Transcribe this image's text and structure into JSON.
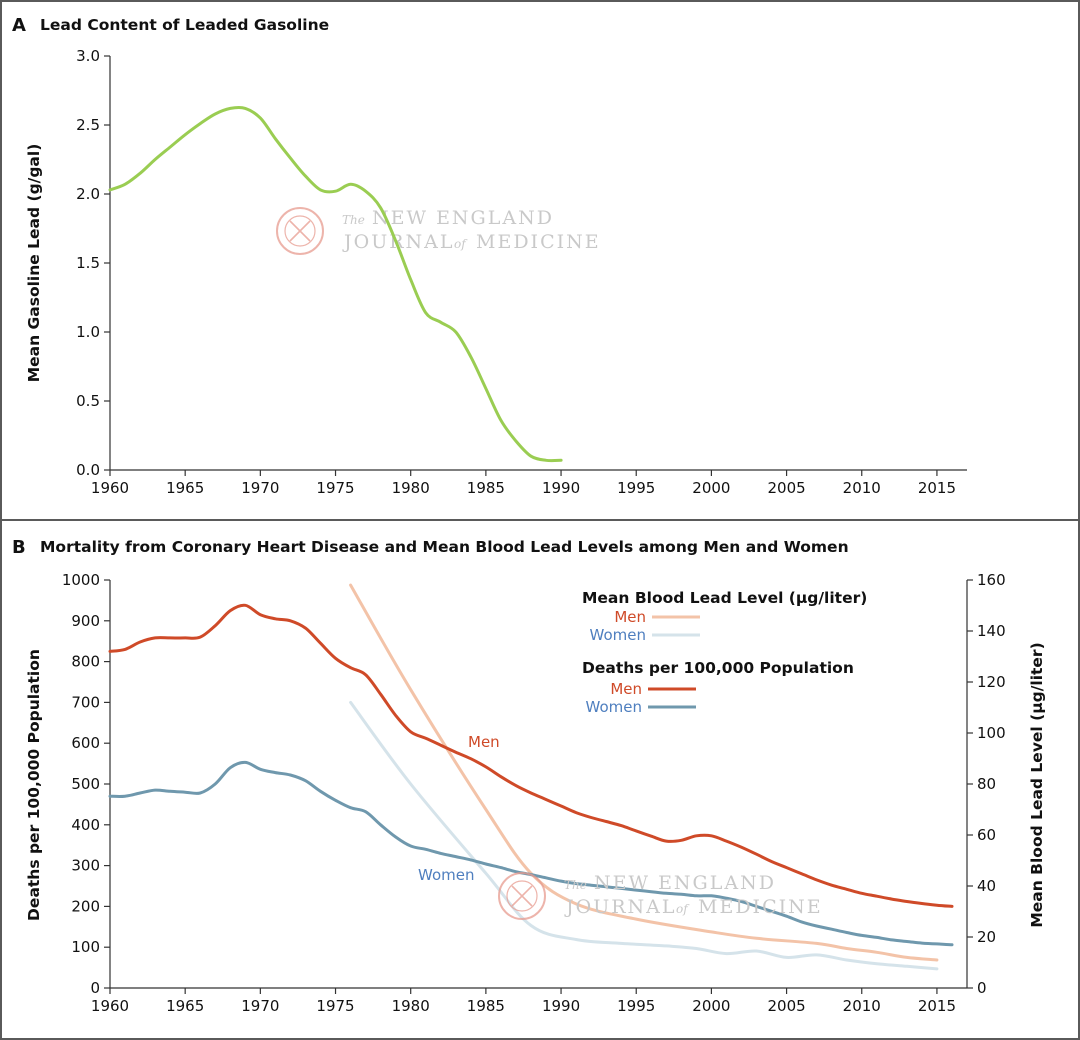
{
  "panels": [
    {
      "letter": "A",
      "title": "Lead Content of Leaded Gasoline"
    },
    {
      "letter": "B",
      "title": "Mortality from Coronary Heart Disease and Mean Blood Lead Levels among Men and Women"
    }
  ],
  "watermark": {
    "the": "The",
    "line1": "NEW ENGLAND",
    "line2": "JOURNAL",
    "of": "of",
    "line3": "MEDICINE"
  },
  "colors": {
    "gasoline": "#9acd52",
    "deaths_men": "#cf4a28",
    "deaths_women": "#6f98ad",
    "blood_men": "#f3c3a8",
    "blood_women": "#d5e3ea",
    "label_men": "#cf4a28",
    "label_women": "#4f7fbf",
    "watermark": "#e79b8f"
  },
  "chart_data": [
    {
      "type": "line",
      "title": "Lead Content of Leaded Gasoline",
      "xlabel": "",
      "ylabel": "Mean Gasoline Lead (g/gal)",
      "xlim": [
        1960,
        2017
      ],
      "ylim": [
        0,
        3.0
      ],
      "x_ticks": [
        "1960",
        "1965",
        "1970",
        "1975",
        "1980",
        "1985",
        "1990",
        "1995",
        "2000",
        "2005",
        "2010",
        "2015"
      ],
      "y_ticks": [
        "0.0",
        "0.5",
        "1.0",
        "1.5",
        "2.0",
        "2.5",
        "3.0"
      ],
      "grid": false,
      "series": [
        {
          "x": [
            1960,
            1961,
            1962,
            1963,
            1964,
            1965,
            1966,
            1967,
            1968,
            1969,
            1970,
            1971,
            1972,
            1973,
            1974,
            1975,
            1976,
            1977,
            1978,
            1979,
            1980,
            1981,
            1982,
            1983,
            1984,
            1985,
            1986,
            1987,
            1988,
            1989,
            1990
          ],
          "y": [
            2.03,
            2.07,
            2.15,
            2.25,
            2.34,
            2.43,
            2.51,
            2.58,
            2.62,
            2.62,
            2.55,
            2.4,
            2.26,
            2.13,
            2.03,
            2.02,
            2.07,
            2.02,
            1.9,
            1.66,
            1.38,
            1.14,
            1.07,
            1.0,
            0.82,
            0.59,
            0.36,
            0.21,
            0.1,
            0.07,
            0.07
          ]
        }
      ]
    },
    {
      "type": "line",
      "title": "Mortality from Coronary Heart Disease and Mean Blood Lead Levels among Men and Women",
      "xlabel": "",
      "ylabel": "Deaths per 100,000 Population",
      "y2label": "Mean Blood Lead Level (µg/liter)",
      "xlim": [
        1960,
        2017
      ],
      "ylim": [
        0,
        1000
      ],
      "y2lim": [
        0,
        160
      ],
      "x_ticks": [
        "1960",
        "1965",
        "1970",
        "1975",
        "1980",
        "1985",
        "1990",
        "1995",
        "2000",
        "2005",
        "2010",
        "2015"
      ],
      "y_ticks": [
        "0",
        "100",
        "200",
        "300",
        "400",
        "500",
        "600",
        "700",
        "800",
        "900",
        "1000"
      ],
      "y2_ticks": [
        "0",
        "20",
        "40",
        "60",
        "80",
        "100",
        "120",
        "140",
        "160"
      ],
      "grid": false,
      "legend": {
        "placement": "top-right",
        "blood_title": "Mean Blood Lead Level (µg/liter)",
        "blood_men": "Men",
        "blood_women": "Women",
        "deaths_title": "Deaths per 100,000 Population",
        "deaths_men": "Men",
        "deaths_women": "Women"
      },
      "annotations": {
        "men": "Men",
        "women": "Women"
      },
      "series": [
        {
          "name": "Men",
          "kind": "deaths",
          "axis": "left",
          "x": [
            1960,
            1961,
            1962,
            1963,
            1964,
            1965,
            1966,
            1967,
            1968,
            1969,
            1970,
            1971,
            1972,
            1973,
            1974,
            1975,
            1976,
            1977,
            1978,
            1979,
            1980,
            1981,
            1982,
            1983,
            1984,
            1985,
            1986,
            1987,
            1988,
            1989,
            1990,
            1991,
            1992,
            1993,
            1994,
            1995,
            1996,
            1997,
            1998,
            1999,
            2000,
            2001,
            2002,
            2003,
            2004,
            2005,
            2006,
            2007,
            2008,
            2009,
            2010,
            2011,
            2012,
            2013,
            2014,
            2015,
            2016
          ],
          "y": [
            825,
            830,
            848,
            858,
            858,
            858,
            860,
            888,
            925,
            938,
            915,
            905,
            900,
            882,
            845,
            808,
            785,
            768,
            720,
            668,
            628,
            612,
            595,
            578,
            562,
            542,
            518,
            496,
            478,
            462,
            446,
            430,
            418,
            408,
            398,
            385,
            372,
            360,
            362,
            373,
            373,
            360,
            345,
            328,
            310,
            295,
            280,
            265,
            252,
            242,
            232,
            225,
            218,
            212,
            207,
            203,
            200
          ]
        },
        {
          "name": "Women",
          "kind": "deaths",
          "axis": "left",
          "x": [
            1960,
            1961,
            1962,
            1963,
            1964,
            1965,
            1966,
            1967,
            1968,
            1969,
            1970,
            1971,
            1972,
            1973,
            1974,
            1975,
            1976,
            1977,
            1978,
            1979,
            1980,
            1981,
            1982,
            1983,
            1984,
            1985,
            1986,
            1987,
            1988,
            1989,
            1990,
            1991,
            1992,
            1993,
            1994,
            1995,
            1996,
            1997,
            1998,
            1999,
            2000,
            2001,
            2002,
            2003,
            2004,
            2005,
            2006,
            2007,
            2008,
            2009,
            2010,
            2011,
            2012,
            2013,
            2014,
            2015,
            2016
          ],
          "y": [
            470,
            470,
            478,
            485,
            482,
            480,
            478,
            500,
            540,
            553,
            536,
            528,
            522,
            508,
            482,
            460,
            442,
            432,
            400,
            370,
            348,
            340,
            330,
            322,
            314,
            304,
            295,
            285,
            278,
            270,
            262,
            256,
            252,
            248,
            244,
            240,
            236,
            232,
            230,
            226,
            226,
            220,
            212,
            200,
            188,
            176,
            162,
            152,
            144,
            136,
            129,
            124,
            118,
            114,
            110,
            108,
            106
          ]
        },
        {
          "name": "Men",
          "kind": "blood_lead",
          "axis": "right",
          "x": [
            1976,
            1980,
            1985,
            1988,
            1991,
            1995,
            2000,
            2003,
            2007,
            2009,
            2011,
            2013,
            2015
          ],
          "y": [
            158,
            117,
            70,
            45,
            33,
            27,
            22,
            19.5,
            17.5,
            15.5,
            14,
            12,
            11
          ]
        },
        {
          "name": "Women",
          "kind": "blood_lead",
          "axis": "right",
          "x": [
            1976,
            1980,
            1985,
            1988,
            1991,
            1994,
            1997,
            1999,
            2001,
            2003,
            2005,
            2007,
            2009,
            2011,
            2013,
            2015
          ],
          "y": [
            112,
            80,
            45,
            24.5,
            19,
            17.5,
            16.5,
            15.5,
            13.5,
            14.5,
            12,
            13,
            11,
            9.5,
            8.5,
            7.5
          ]
        }
      ]
    }
  ]
}
